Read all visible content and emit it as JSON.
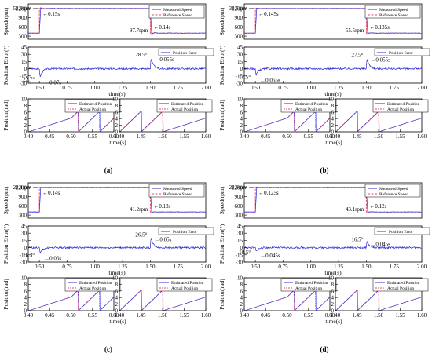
{
  "figure": {
    "common": {
      "speed_ylabel": "Speed(rpm)",
      "error_ylabel": "Position Error(°)",
      "pos_ylabel": "Position(rad)",
      "xlabel": "time(s)",
      "legend_measured": "Measured Speed",
      "legend_reference": "Reference Speed",
      "legend_error": "Position Error",
      "legend_estimated": "Estimated Position",
      "legend_actual": "Actual Position",
      "colors": {
        "measured": "#2b2bd6",
        "reference": "#ee4466",
        "error": "#2b2bd6",
        "estimated": "#2b2bd6",
        "actual": "#ee4466"
      }
    }
  },
  "chart_data": [
    {
      "panel": "(a)",
      "type": "line",
      "speed": {
        "x_range": [
          0.4,
          2.0
        ],
        "yticks": [
          300,
          600,
          900,
          1200
        ],
        "low": 400,
        "high": 1200,
        "step_up": 0.5,
        "step_down": 1.5,
        "annotations": [
          "52.9rpm",
          "0.15s",
          "97.7rpm",
          "0.14s"
        ]
      },
      "error": {
        "x_range": [
          0.4,
          2.0
        ],
        "yticks": [
          -30,
          -15,
          0,
          15,
          30,
          45
        ],
        "annotations": [
          "22.7°",
          "0.07s",
          "28.5°",
          "0.055s"
        ],
        "peaks": [
          -22.7,
          28.5
        ]
      },
      "position": {
        "left_range": [
          0.4,
          0.6
        ],
        "right_range": [
          1.4,
          1.6
        ],
        "yticks": [
          0,
          2,
          4,
          6,
          8,
          10
        ]
      },
      "ticks": {
        "x_main": [
          "0.50",
          "0.75",
          "1.00",
          "1.25",
          "1.50",
          "1.75",
          "2.00"
        ],
        "x_pos_left": [
          "0.40",
          "0.45",
          "0.50",
          "0.55",
          "0.60"
        ],
        "x_pos_right": [
          "1.40",
          "1.45",
          "1.50",
          "1.55",
          "1.60"
        ]
      }
    },
    {
      "panel": "(b)",
      "type": "line",
      "speed": {
        "x_range": [
          0.4,
          2.0
        ],
        "yticks": [
          300,
          600,
          900,
          1200
        ],
        "low": 400,
        "high": 1200,
        "step_up": 0.5,
        "step_down": 1.5,
        "annotations": [
          "33.5rpm",
          "0.145s",
          "55.5rpm",
          "0.135s"
        ]
      },
      "error": {
        "x_range": [
          0.4,
          2.0
        ],
        "yticks": [
          -30,
          -15,
          0,
          15,
          30,
          45
        ],
        "annotations": [
          "17.5°",
          "0.065s",
          "27.5°",
          "0.055s"
        ],
        "peaks": [
          -17.5,
          27.5
        ]
      },
      "position": {
        "left_range": [
          0.4,
          0.6
        ],
        "right_range": [
          1.4,
          1.6
        ],
        "yticks": [
          0,
          2,
          4,
          6,
          8,
          10
        ]
      },
      "ticks": {
        "x_main": [
          "0.50",
          "0.75",
          "1.00",
          "1.25",
          "1.50",
          "1.75",
          "2.00"
        ],
        "x_pos_left": [
          "0.40",
          "0.45",
          "0.50",
          "0.55",
          "0.60"
        ],
        "x_pos_right": [
          "1.40",
          "1.45",
          "1.50",
          "1.55",
          "1.60"
        ]
      }
    },
    {
      "panel": "(c)",
      "type": "line",
      "speed": {
        "x_range": [
          0.4,
          2.0
        ],
        "yticks": [
          300,
          600,
          900,
          1200
        ],
        "low": 400,
        "high": 1200,
        "step_up": 0.5,
        "step_down": 1.5,
        "annotations": [
          "22.1rpm",
          "0.14s",
          "41.2rpm",
          "0.13s"
        ]
      },
      "error": {
        "x_range": [
          0.4,
          2.0
        ],
        "yticks": [
          -30,
          -15,
          0,
          15,
          30,
          45
        ],
        "annotations": [
          "16.3°",
          "0.06s",
          "26.5°",
          "0.05s"
        ],
        "peaks": [
          -16.3,
          26.5
        ]
      },
      "position": {
        "left_range": [
          0.4,
          0.6
        ],
        "right_range": [
          1.4,
          1.6
        ],
        "yticks": [
          0,
          2,
          4,
          6,
          8,
          10
        ]
      },
      "ticks": {
        "x_main": [
          "0.50",
          "0.75",
          "1.00",
          "1.25",
          "1.50",
          "1.75",
          "2.00"
        ],
        "x_pos_left": [
          "0.40",
          "0.45",
          "0.50",
          "0.55",
          "0.60"
        ],
        "x_pos_right": [
          "1.40",
          "1.45",
          "1.50",
          "1.55",
          "1.60"
        ]
      }
    },
    {
      "panel": "(d)",
      "type": "line",
      "speed": {
        "x_range": [
          0.4,
          2.0
        ],
        "yticks": [
          300,
          600,
          900,
          1200
        ],
        "low": 400,
        "high": 1200,
        "step_up": 0.5,
        "step_down": 1.5,
        "annotations": [
          "22.9rpm",
          "0.125s",
          "43.1rpm",
          "0.12s"
        ]
      },
      "error": {
        "x_range": [
          0.4,
          2.0
        ],
        "yticks": [
          -30,
          -15,
          0,
          15,
          30,
          45
        ],
        "annotations": [
          "10.5°",
          "0.045s",
          "16.5°",
          "0.045s"
        ],
        "peaks": [
          -10.5,
          16.5
        ]
      },
      "position": {
        "left_range": [
          0.4,
          0.6
        ],
        "right_range": [
          1.4,
          1.6
        ],
        "yticks": [
          0,
          2,
          4,
          6,
          8,
          10
        ]
      },
      "ticks": {
        "x_main": [
          "0.50",
          "0.75",
          "1.00",
          "1.25",
          "1.50",
          "1.75",
          "2.00"
        ],
        "x_pos_left": [
          "0.40",
          "0.45",
          "0.50",
          "0.55",
          "0.60"
        ],
        "x_pos_right": [
          "1.40",
          "1.45",
          "1.50",
          "1.55",
          "1.60"
        ]
      }
    }
  ]
}
